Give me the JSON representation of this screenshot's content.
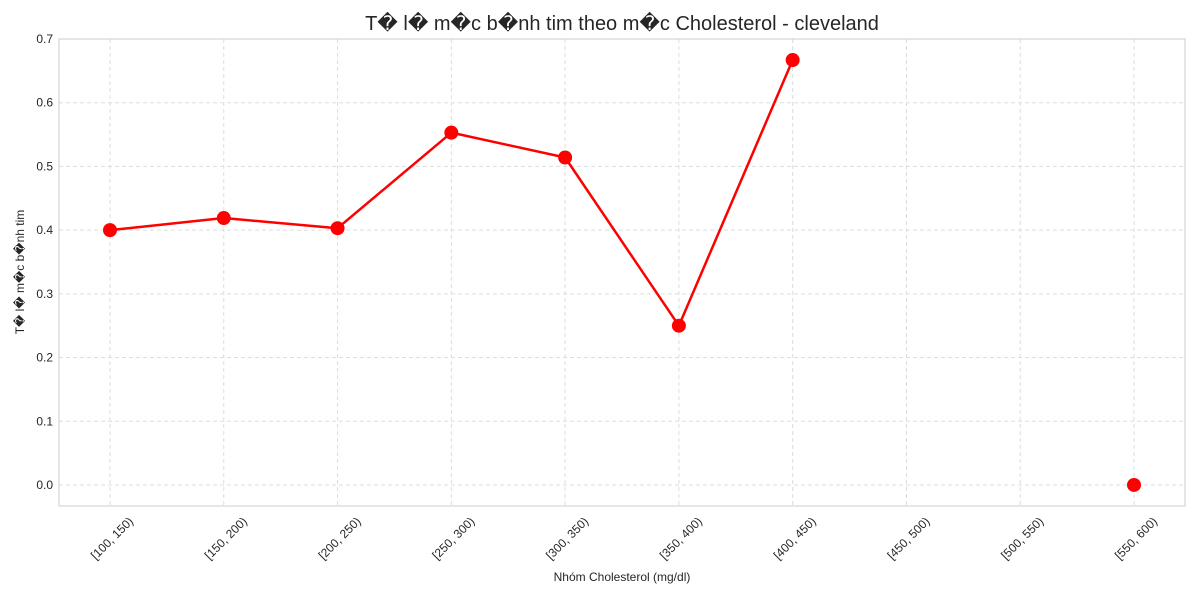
{
  "chart_data": {
    "type": "line",
    "title": "T� l� m�c b�nh tim theo m�c Cholesterol - cleveland",
    "xlabel": "Nhóm Cholesterol (mg/dl)",
    "ylabel": "T� l� m�c b�nh tim",
    "categories": [
      "[100, 150)",
      "[150, 200)",
      "[200, 250)",
      "[250, 300)",
      "[300, 350)",
      "[350, 400)",
      "[400, 450)",
      "[450, 500)",
      "[500, 550)",
      "[550, 600)"
    ],
    "series": [
      {
        "values": [
          0.4,
          0.419,
          0.403,
          0.553,
          0.514,
          0.25,
          0.667,
          null,
          null,
          0.0
        ],
        "color": "#ff0000"
      }
    ],
    "ylim": [
      -0.033,
      0.7
    ],
    "yticks": [
      "0.0",
      "0.1",
      "0.2",
      "0.3",
      "0.4",
      "0.5",
      "0.6",
      "0.7"
    ],
    "grid": true,
    "legend": "none"
  }
}
